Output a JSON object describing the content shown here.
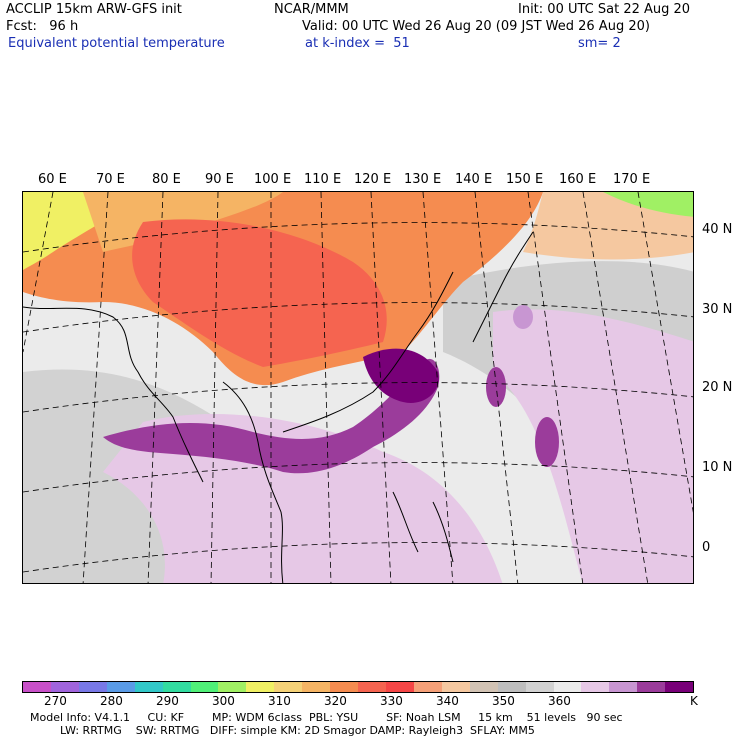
{
  "header": {
    "line1_left": "ACCLIP 15km ARW-GFS init",
    "line1_center": "NCAR/MMM",
    "line1_right": "Init: 00 UTC Sat 22 Aug 20",
    "line2_left": "Fcst:   96 h",
    "line2_right": "Valid: 00 UTC Wed 26 Aug 20 (09 JST Wed 26 Aug 20)",
    "line3_left": "Equivalent potential temperature",
    "line3_center": "at k-index =  51",
    "line3_right": "sm= 2"
  },
  "map": {
    "lon_labels": [
      "60 E",
      "70 E",
      "80 E",
      "90 E",
      "100 E",
      "110 E",
      "120 E",
      "130 E",
      "140 E",
      "150 E",
      "160 E",
      "170 E"
    ],
    "lat_labels": [
      "40 N",
      "30 N",
      "20 N",
      "10 N",
      "0"
    ]
  },
  "colorbar": {
    "colors": [
      "#c850c8",
      "#a064dc",
      "#7878e6",
      "#5a9be6",
      "#32c8c8",
      "#32dca0",
      "#50f078",
      "#a0f064",
      "#f0f064",
      "#f5d278",
      "#f5b464",
      "#f58c50",
      "#f56450",
      "#f54646",
      "#f5a078",
      "#f5c8a0",
      "#d2c3b4",
      "#bebebe",
      "#d2d2d2",
      "#ebebeb",
      "#e6c8e6",
      "#c896d2",
      "#9b3c9b",
      "#780078"
    ],
    "tick_labels": [
      "270",
      "280",
      "290",
      "300",
      "310",
      "320",
      "330",
      "340",
      "350",
      "360"
    ],
    "unit": "K"
  },
  "footer": {
    "line1": "Model Info: V4.1.1     CU: KF        MP: WDM 6class  PBL: YSU        SF: Noah LSM     15 km    51 levels   90 sec",
    "line2": "LW: RRTMG    SW: RRTMG   DIFF: simple KM: 2D Smagor DAMP: Rayleigh3  SFLAY: MM5"
  }
}
